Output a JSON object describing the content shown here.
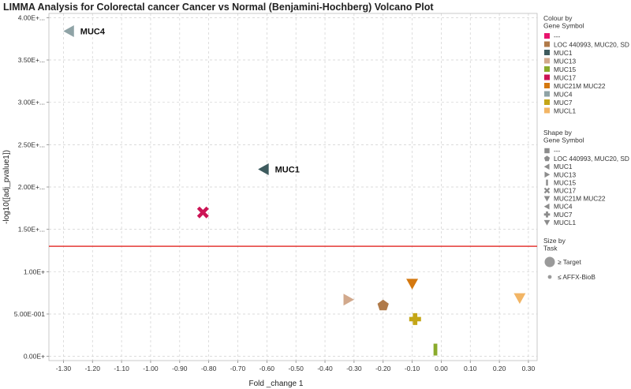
{
  "chart_data": {
    "type": "scatter",
    "title": "LIMMA Analysis for Colorectal cancer Cancer vs Normal (Benjamini-Hochberg) Volcano Plot",
    "xlabel": "Fold _change 1",
    "ylabel": "-log10([adj_pvalue1])",
    "xlim": [
      -1.35,
      0.33
    ],
    "ylim": [
      -0.05,
      4.05
    ],
    "xticks": [
      -1.3,
      -1.2,
      -1.1,
      -1.0,
      -0.9,
      -0.8,
      -0.7,
      -0.6,
      -0.5,
      -0.4,
      -0.3,
      -0.2,
      -0.1,
      0.0,
      0.1,
      0.2,
      0.3
    ],
    "xtick_labels": [
      "-1.30",
      "-1.20",
      "-1.10",
      "-1.00",
      "-0.90",
      "-0.80",
      "-0.70",
      "-0.60",
      "-0.50",
      "-0.40",
      "-0.30",
      "-0.20",
      "-0.10",
      "0.00",
      "0.10",
      "0.20",
      "0.30"
    ],
    "yticks": [
      0.0,
      0.5,
      1.0,
      1.5,
      2.0,
      2.5,
      3.0,
      3.5,
      4.0
    ],
    "ytick_labels": [
      "0.00E+",
      "5.00E-001",
      "1.00E+",
      "1.50E+...",
      "2.00E+...",
      "2.50E+...",
      "3.00E+...",
      "3.50E+...",
      "4.00E+..."
    ],
    "threshold_y": 1.3,
    "grid": true,
    "legend_position": "right",
    "points": [
      {
        "gene": "MUC4",
        "x": -1.28,
        "y": 3.84,
        "color": "#8fa3a6",
        "shape": "triangle-left",
        "label": "MUC4"
      },
      {
        "gene": "MUC1",
        "x": -0.61,
        "y": 2.21,
        "color": "#3e5b5e",
        "shape": "triangle-left",
        "label": "MUC1"
      },
      {
        "gene": "MUC17",
        "x": -0.82,
        "y": 1.7,
        "color": "#cc1455",
        "shape": "x"
      },
      {
        "gene": "MUC21M MUC22",
        "x": -0.1,
        "y": 0.86,
        "color": "#d4780f",
        "shape": "triangle-down"
      },
      {
        "gene": "MUC13",
        "x": -0.32,
        "y": 0.67,
        "color": "#d2a98c",
        "shape": "triangle-right"
      },
      {
        "gene": "LOC 440993, MUC20, SD",
        "x": -0.2,
        "y": 0.6,
        "color": "#b07a49",
        "shape": "pentagon"
      },
      {
        "gene": "MUC7",
        "x": -0.09,
        "y": 0.44,
        "color": "#c4a617",
        "shape": "plus"
      },
      {
        "gene": "MUC15",
        "x": -0.02,
        "y": 0.08,
        "color": "#8aab2c",
        "shape": "bar"
      },
      {
        "gene": "MUCL1",
        "x": 0.27,
        "y": 0.69,
        "color": "#f2b565",
        "shape": "triangle-down"
      }
    ]
  },
  "legend": {
    "colour_title": [
      "Colour by",
      "Gene Symbol"
    ],
    "shape_title": [
      "Shape by",
      "Gene Symbol"
    ],
    "size_title": [
      "Size by",
      "Task"
    ],
    "items": [
      {
        "label": "---",
        "color": "#e8146e",
        "shape": "square"
      },
      {
        "label": "LOC 440993, MUC20, SD",
        "color": "#b07a49",
        "shape": "pentagon"
      },
      {
        "label": "MUC1",
        "color": "#3e5b5e",
        "shape": "triangle-left"
      },
      {
        "label": "MUC13",
        "color": "#d2a98c",
        "shape": "triangle-right"
      },
      {
        "label": "MUC15",
        "color": "#8aab2c",
        "shape": "bar"
      },
      {
        "label": "MUC17",
        "color": "#cc1455",
        "shape": "x"
      },
      {
        "label": "MUC21M MUC22",
        "color": "#d4780f",
        "shape": "triangle-down"
      },
      {
        "label": "MUC4",
        "color": "#8fa3a6",
        "shape": "triangle-left"
      },
      {
        "label": "MUC7",
        "color": "#c4a617",
        "shape": "plus"
      },
      {
        "label": "MUCL1",
        "color": "#f2b565",
        "shape": "triangle-down"
      }
    ],
    "size_items": [
      {
        "label": "≥ Target",
        "size": "large"
      },
      {
        "label": "≤ AFFX-BioB",
        "size": "small"
      }
    ]
  }
}
